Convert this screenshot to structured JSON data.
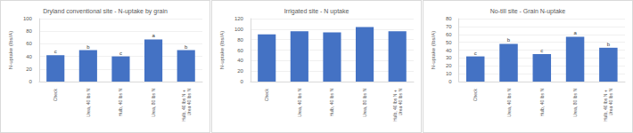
{
  "chart_data": [
    {
      "type": "bar",
      "title": "Dryland conventional site - N-uptake by grain",
      "y_label": "N-uptake (lbs/A)",
      "categories": [
        "Check",
        "Urea, 40 lbs N",
        "Hulb, 40 lbs N",
        "Urea, 80 lbs N",
        "Hulb, 40 lbs N + Urea 40 lbs N"
      ],
      "values": [
        42,
        50,
        40,
        67,
        50
      ],
      "annotations": [
        "c",
        "b",
        "c",
        "a",
        "b"
      ],
      "color": "#4472c4",
      "ylim": [
        0,
        100
      ],
      "yticks": [
        0,
        20,
        40,
        60,
        80,
        100
      ],
      "grid": true
    },
    {
      "type": "bar",
      "title": "Irrigated site - N uptake",
      "y_label": "N-uptake (lbs/A)",
      "categories": [
        "Check",
        "Urea, 40 lbs N",
        "Hulb, 40 lbs N",
        "Urea, 80 lbs N",
        "Hulb, 40 lbs N + Urea 40 lbs N"
      ],
      "values": [
        90,
        96,
        94,
        104,
        96
      ],
      "color": "#4472c4",
      "ylim": [
        0,
        120
      ],
      "yticks": [
        0,
        20,
        40,
        60,
        80,
        100,
        120
      ],
      "grid": true
    },
    {
      "type": "bar",
      "title": "No-till site - Grain N-uptake",
      "y_label": "N-uptake (lbs/A)",
      "categories": [
        "Check",
        "Urea, 40 lbs N",
        "Hulb, 40 lbs N",
        "Urea, 80 lbs N",
        "Hulb, 40 lbs N + Urea 40 lbs N"
      ],
      "values": [
        32,
        48,
        35,
        57,
        43
      ],
      "annotations": [
        "c",
        "b",
        "c",
        "a",
        "b"
      ],
      "color": "#4472c4",
      "ylim": [
        0,
        80
      ],
      "yticks": [
        0,
        10,
        20,
        30,
        40,
        50,
        60,
        70,
        80
      ],
      "grid": true
    }
  ]
}
